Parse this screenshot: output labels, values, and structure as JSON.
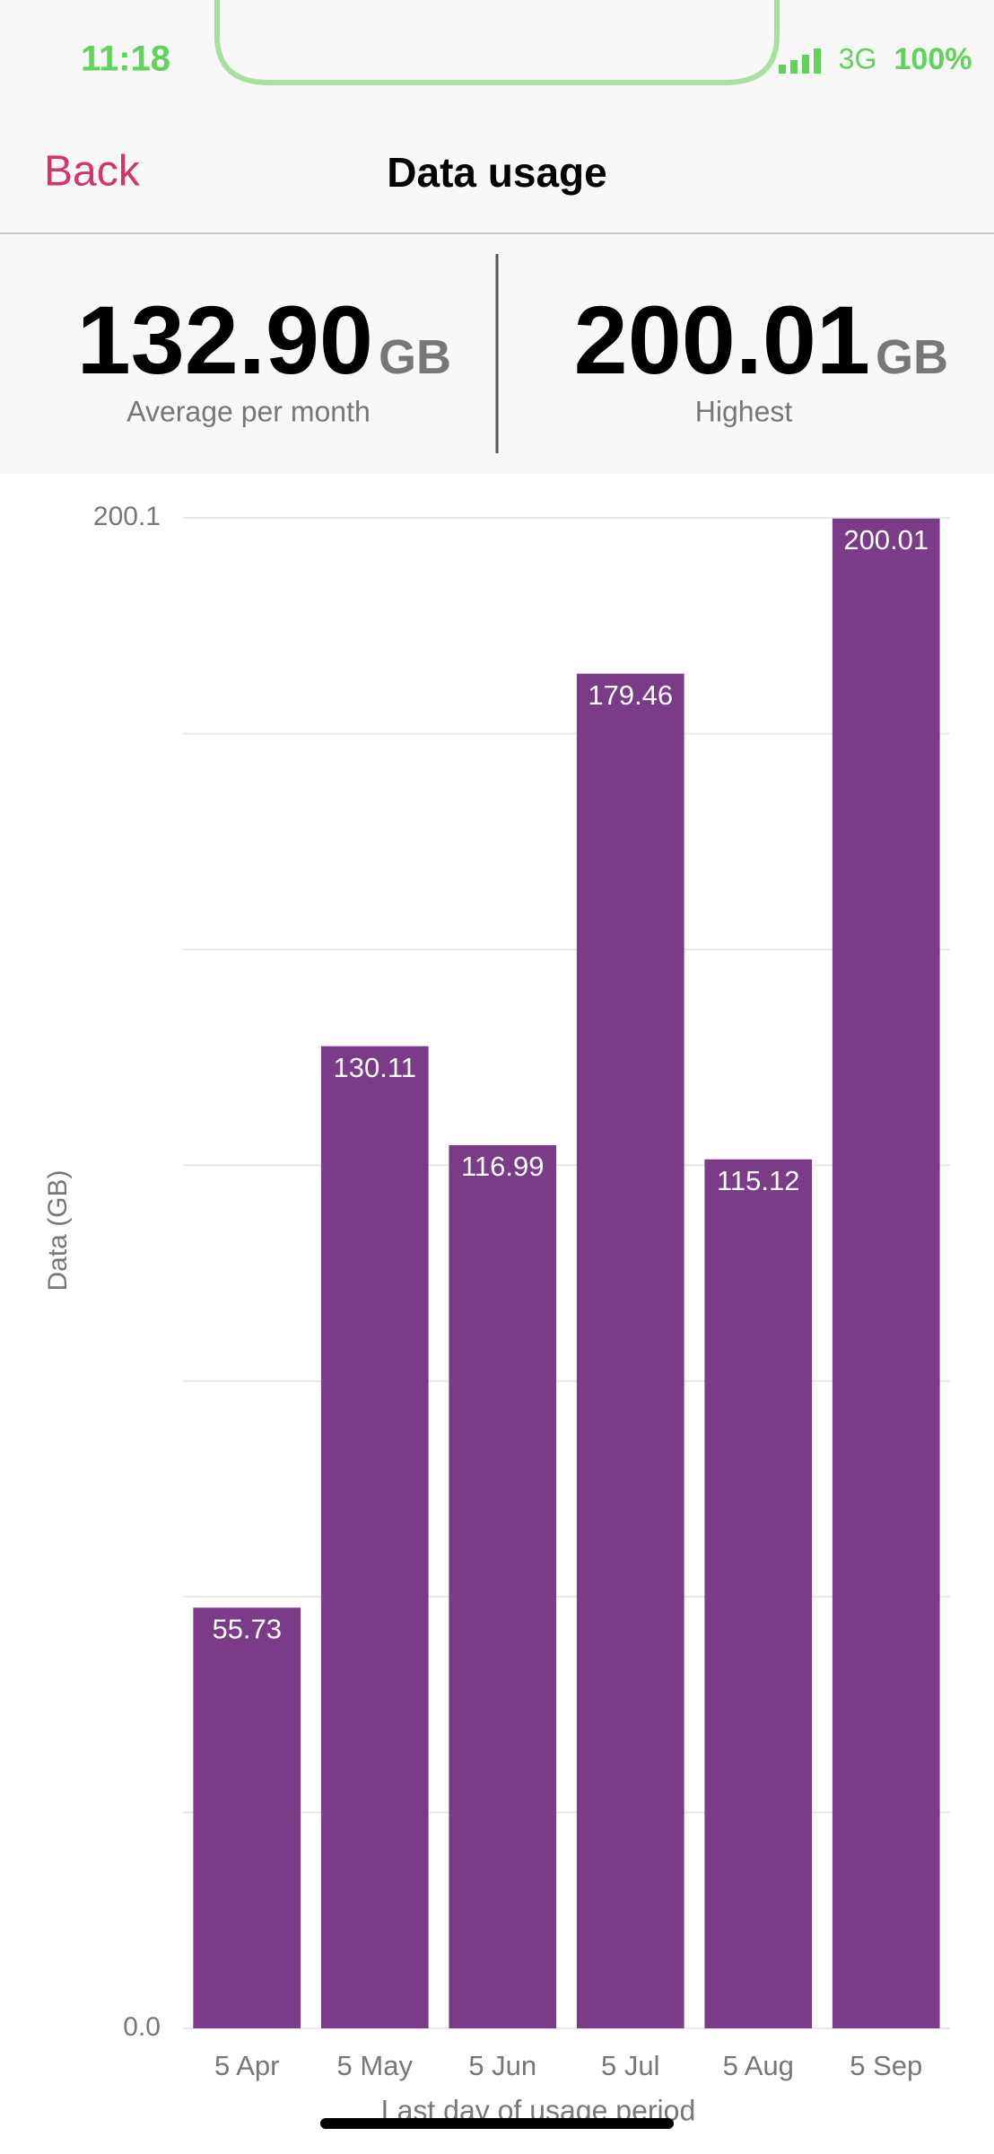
{
  "status_bar": {
    "time": "11:18",
    "network": "3G",
    "battery": "100%"
  },
  "nav": {
    "back": "Back",
    "title": "Data usage"
  },
  "stats": [
    {
      "value": "132.90",
      "unit": "GB",
      "label": "Average per month"
    },
    {
      "value": "200.01",
      "unit": "GB",
      "label": "Highest"
    }
  ],
  "chart_data": {
    "type": "bar",
    "categories": [
      "5 Apr",
      "5 May",
      "5 Jun",
      "5 Jul",
      "5 Aug",
      "5 Sep"
    ],
    "values": [
      55.73,
      130.11,
      116.99,
      179.46,
      115.12,
      200.01
    ],
    "color": "#7a3b87",
    "ylim": [
      0,
      200.1
    ],
    "yticks": [
      {
        "value": 0,
        "label": "0.0"
      },
      200.1
    ],
    "ygrid": [
      28.59,
      57.17,
      85.76,
      114.34,
      142.93,
      171.51
    ],
    "y_label": "Data (GB)",
    "x_label": "Last day of usage period",
    "grid": true
  }
}
